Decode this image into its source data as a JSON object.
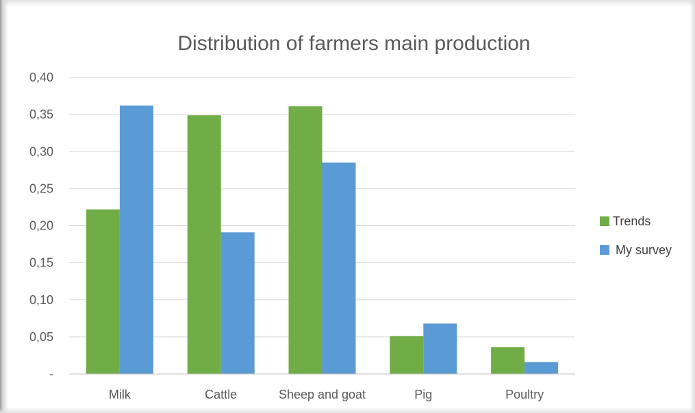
{
  "chart_data": {
    "type": "bar",
    "title": "Distribution of farmers main production",
    "categories": [
      "Milk",
      "Cattle",
      "Sheep and goat",
      "Pig",
      "Poultry"
    ],
    "series": [
      {
        "name": "Trends",
        "values": [
          0.222,
          0.349,
          0.361,
          0.051,
          0.036
        ],
        "color": "#70ad47"
      },
      {
        "name": "My survey",
        "values": [
          0.362,
          0.191,
          0.285,
          0.068,
          0.016
        ],
        "color": "#5b9bd5"
      }
    ],
    "ylim": [
      0,
      0.4
    ],
    "yticks": [
      0,
      0.05,
      0.1,
      0.15,
      0.2,
      0.25,
      0.3,
      0.35,
      0.4
    ],
    "ytick_labels": [
      "-",
      "0,05",
      "0,10",
      "0,15",
      "0,20",
      "0,25",
      "0,30",
      "0,35",
      "0,40"
    ],
    "grid": true,
    "legend_position": "right",
    "colors": {
      "gridline": "#d9d9d9",
      "axis": "#bfbfbf",
      "text": "#595959"
    }
  }
}
